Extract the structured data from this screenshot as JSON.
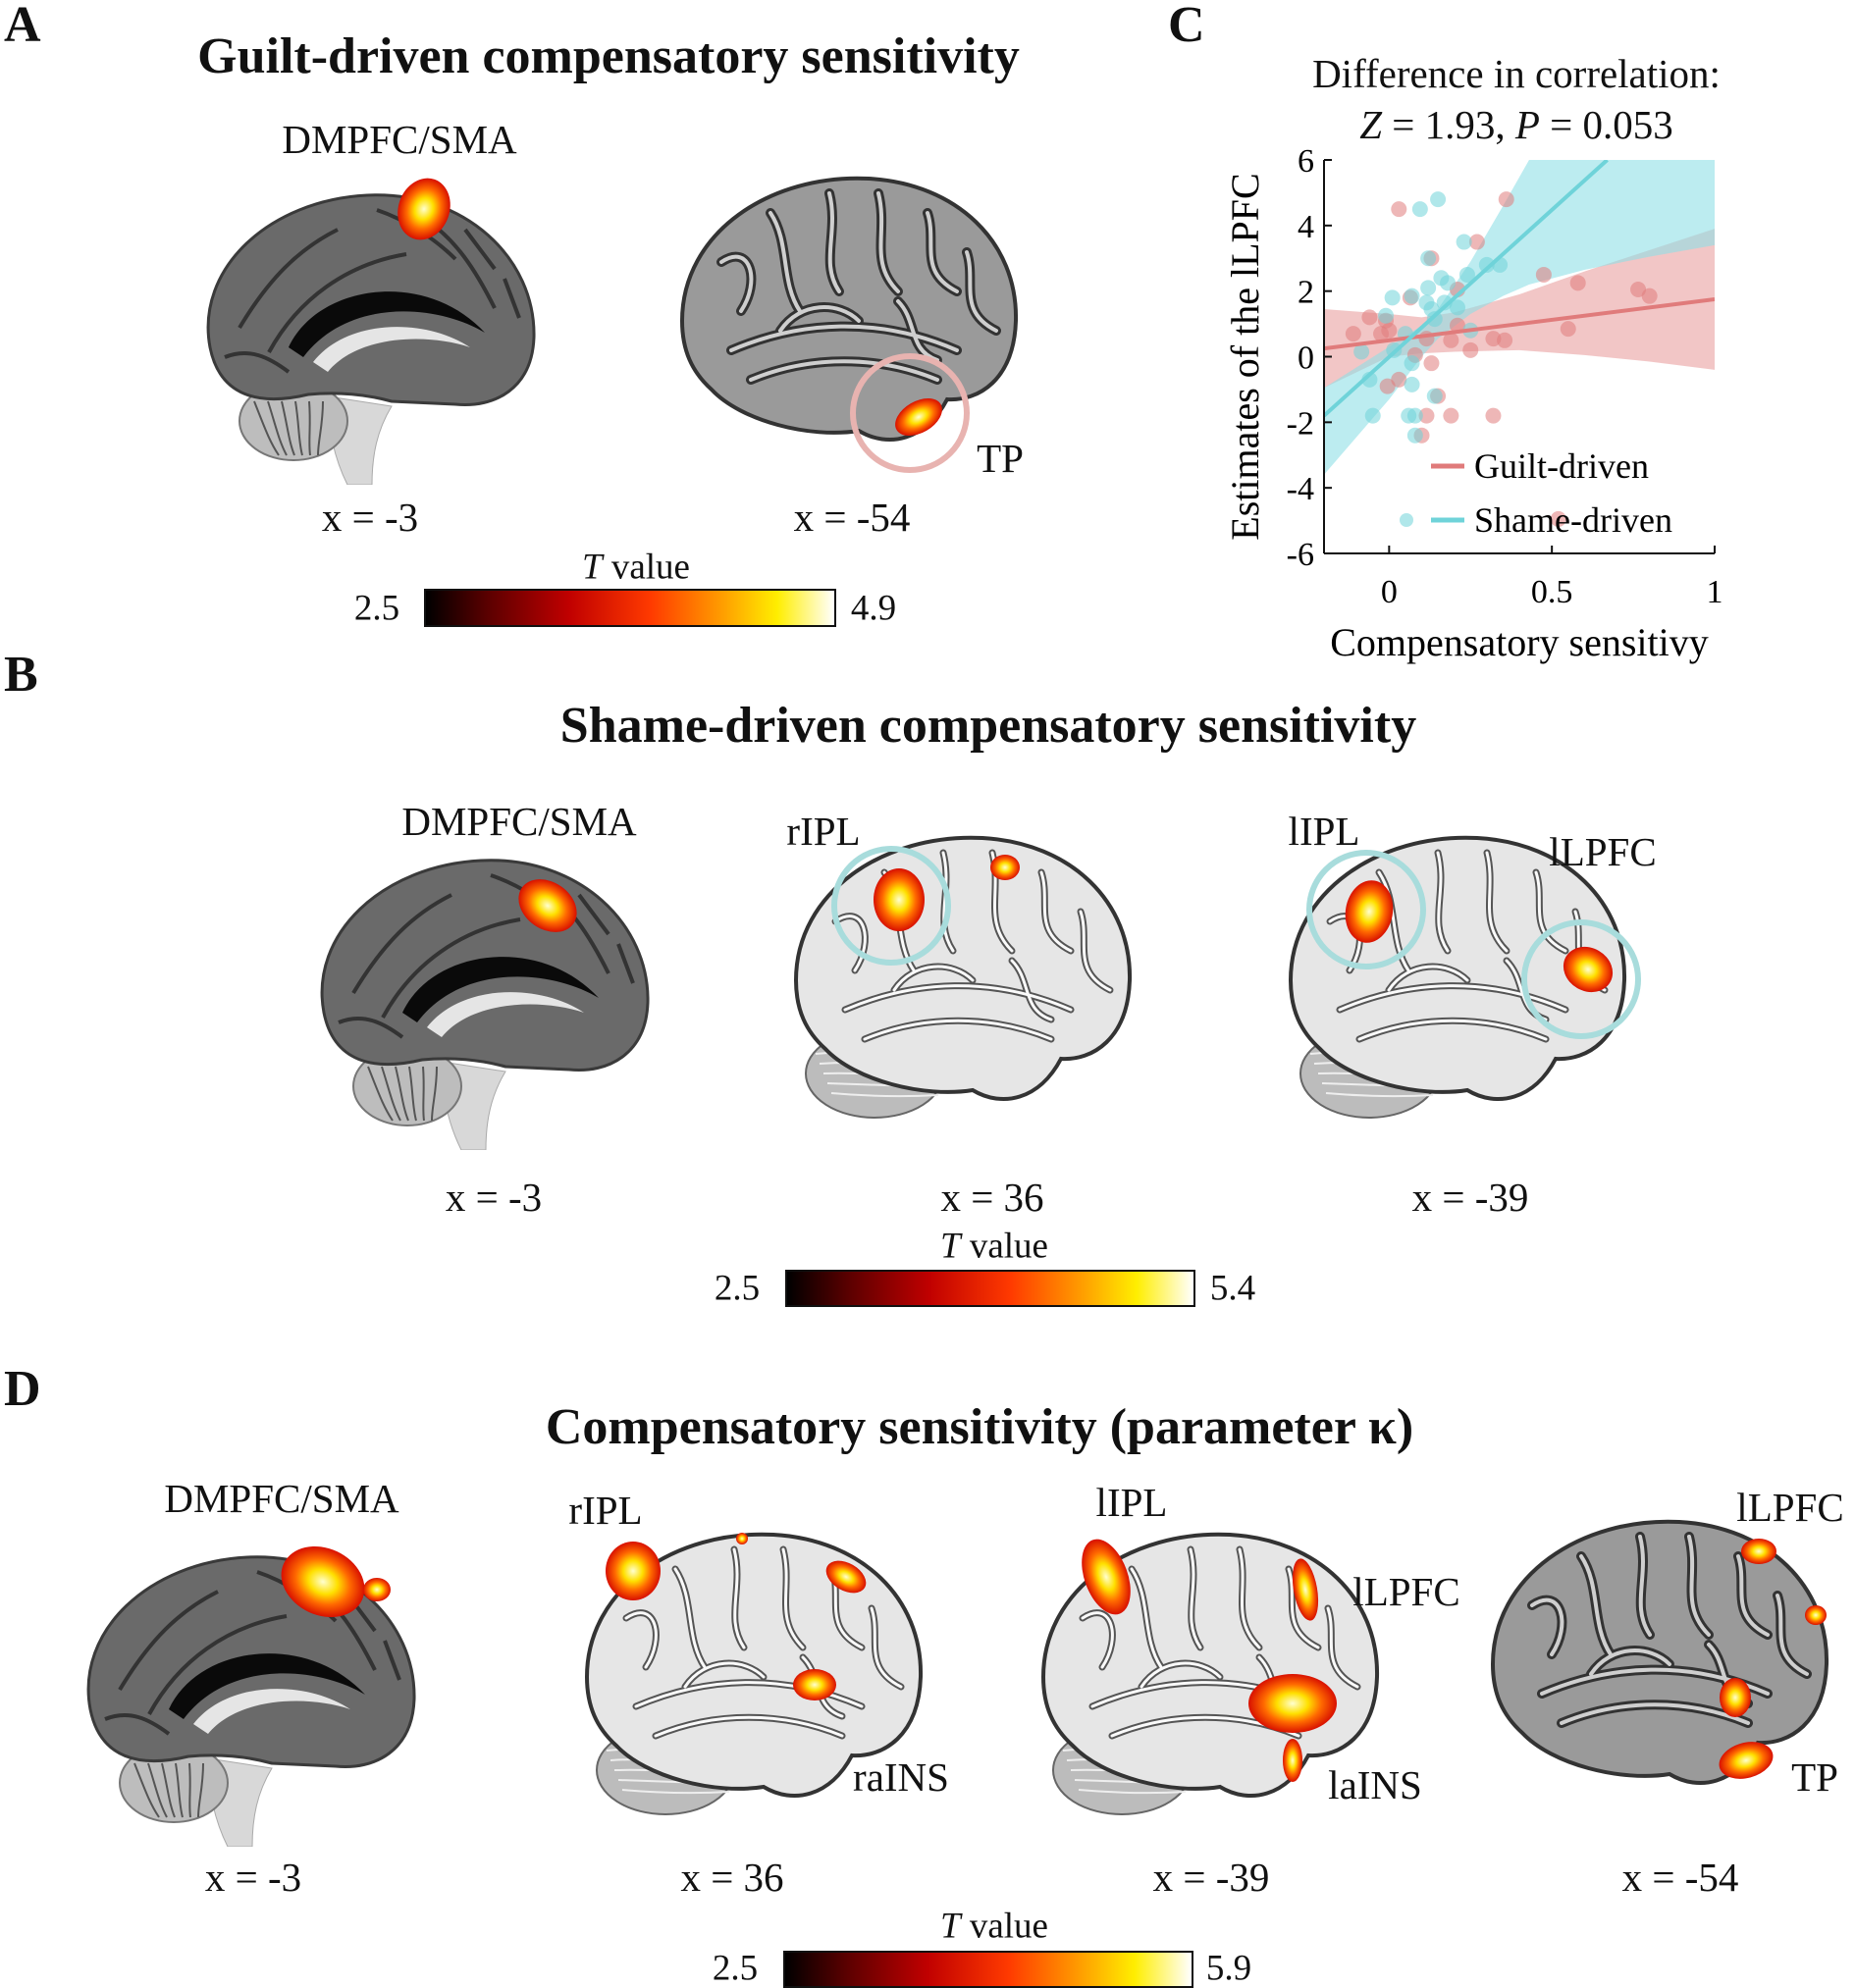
{
  "panelA": {
    "letter": "A",
    "title": "Guilt-driven compensatory sensitivity",
    "labels": {
      "dmpfc": "DMPFC/SMA",
      "tp": "TP"
    },
    "slices": [
      "x = -3",
      "x = -54"
    ],
    "colorbar": {
      "title_italic": "T",
      "title_rest": " value",
      "min": "2.5",
      "max": "4.9"
    }
  },
  "panelB": {
    "letter": "B",
    "title": "Shame-driven compensatory sensitivity",
    "labels": {
      "dmpfc": "DMPFC/SMA",
      "ripl": "rIPL",
      "lipl": "lIPL",
      "llpfc": "lLPFC"
    },
    "slices": [
      "x = -3",
      "x = 36",
      "x = -39"
    ],
    "colorbar": {
      "title_italic": "T",
      "title_rest": " value",
      "min": "2.5",
      "max": "5.4"
    }
  },
  "panelC": {
    "letter": "C"
  },
  "panelD": {
    "letter": "D",
    "title": "Compensatory sensitivity (parameter κ)",
    "labels": {
      "dmpfc": "DMPFC/SMA",
      "ripl": "rIPL",
      "lipl": "lIPL",
      "llpfc1": "lLPFC",
      "llpfc2": "lLPFC",
      "rains": "raINS",
      "lains": "laINS",
      "tp": "TP"
    },
    "slices": [
      "x = -3",
      "x = 36",
      "x = -39",
      "x = -54"
    ],
    "colorbar": {
      "title_italic": "T",
      "title_rest": " value",
      "min": "2.5",
      "max": "5.9"
    }
  },
  "colors": {
    "guilt": "#e07b7b",
    "shame": "#6fd3d9",
    "ring_guilt": "#e8b3b0",
    "ring_shame": "#a8dcdc"
  },
  "chart_data": {
    "type": "scatter",
    "title_line1": "Difference in correlation:",
    "title_line2": {
      "z_sym": "Z",
      "z_val": " = 1.93, ",
      "p_sym": "P",
      "p_val": " = 0.053"
    },
    "xlabel": "Compensatory sensitivy",
    "ylabel": "Estimates of the lLPFC",
    "xlim": [
      -0.2,
      1
    ],
    "ylim": [
      -6,
      6
    ],
    "xticks": [
      0,
      0.5,
      1
    ],
    "xtick_labels": [
      "0",
      "0.5",
      "1"
    ],
    "yticks": [
      -6,
      -4,
      -2,
      0,
      2,
      4,
      6
    ],
    "ytick_labels": [
      "-6",
      "-4",
      "-2",
      "0",
      "2",
      "4",
      "6"
    ],
    "legend": {
      "position": "bottom-right",
      "entries": [
        "Guilt-driven",
        "Shame-driven"
      ]
    },
    "grid": false,
    "series": [
      {
        "name": "Guilt-driven",
        "color": "#e07b7b",
        "points": [
          [
            0.03,
            4.5
          ],
          [
            0.36,
            4.8
          ],
          [
            0.27,
            3.5
          ],
          [
            0.13,
            3.0
          ],
          [
            0.065,
            1.8
          ],
          [
            0.21,
            2.05
          ],
          [
            -0.06,
            1.2
          ],
          [
            -0.11,
            0.7
          ],
          [
            -0.01,
            1.1
          ],
          [
            -0.025,
            0.7
          ],
          [
            0,
            0.8
          ],
          [
            0.08,
            0.05
          ],
          [
            0.13,
            -0.2
          ],
          [
            0.03,
            -0.7
          ],
          [
            -0.005,
            -0.9
          ],
          [
            0.15,
            -1.2
          ],
          [
            0.115,
            -1.8
          ],
          [
            0.19,
            -1.8
          ],
          [
            0.32,
            -1.8
          ],
          [
            0.1,
            -2.4
          ],
          [
            0.21,
            0.95
          ],
          [
            0.25,
            0.2
          ],
          [
            0.32,
            0.55
          ],
          [
            0.355,
            0.5
          ],
          [
            0.19,
            0.5
          ],
          [
            0.115,
            0.55
          ],
          [
            0.475,
            2.5
          ],
          [
            0.58,
            2.25
          ],
          [
            0.765,
            2.05
          ],
          [
            0.8,
            1.85
          ],
          [
            0.55,
            0.85
          ],
          [
            0.52,
            -4.95
          ]
        ],
        "fit": [
          [
            -0.2,
            0.25
          ],
          [
            1,
            1.75
          ]
        ],
        "ci": [
          [
            -0.2,
            -0.95,
            1.45
          ],
          [
            0,
            0.0,
            1.3
          ],
          [
            0.1,
            0.1,
            1.2
          ],
          [
            0.2,
            0.15,
            1.35
          ],
          [
            0.4,
            0.2,
            1.9
          ],
          [
            0.6,
            0.05,
            2.6
          ],
          [
            0.8,
            -0.15,
            3.25
          ],
          [
            1,
            -0.4,
            3.9
          ]
        ]
      },
      {
        "name": "Shame-driven",
        "color": "#6fd3d9",
        "points": [
          [
            0.15,
            4.8
          ],
          [
            0.095,
            4.5
          ],
          [
            0.23,
            3.5
          ],
          [
            0.12,
            3.0
          ],
          [
            0.3,
            2.8
          ],
          [
            0.34,
            2.8
          ],
          [
            0.24,
            2.5
          ],
          [
            0.16,
            2.4
          ],
          [
            0.18,
            2.25
          ],
          [
            0.12,
            2.1
          ],
          [
            0.01,
            1.8
          ],
          [
            0.07,
            1.85
          ],
          [
            0.115,
            1.65
          ],
          [
            0.17,
            1.65
          ],
          [
            0.21,
            1.5
          ],
          [
            0.13,
            1.45
          ],
          [
            0.14,
            1.15
          ],
          [
            -0.01,
            1.25
          ],
          [
            -0.085,
            0.15
          ],
          [
            0.015,
            0.2
          ],
          [
            0.05,
            0.7
          ],
          [
            0.25,
            0.8
          ],
          [
            -0.06,
            -0.7
          ],
          [
            0.07,
            -0.85
          ],
          [
            0.07,
            -0.2
          ],
          [
            -0.05,
            -1.8
          ],
          [
            0.06,
            -1.8
          ],
          [
            0.08,
            -1.8
          ],
          [
            0.14,
            -1.2
          ],
          [
            0.08,
            -2.4
          ]
        ],
        "fit": [
          [
            -0.2,
            -1.8
          ],
          [
            0.67,
            6
          ]
        ],
        "ci": [
          [
            -0.2,
            -3.6,
            -0.95
          ],
          [
            0,
            -1.3,
            0.3
          ],
          [
            0.1,
            0.0,
            0.95
          ],
          [
            0.15,
            0.55,
            1.45
          ],
          [
            0.25,
            1.3,
            2.9
          ],
          [
            0.35,
            1.85,
            4.6
          ],
          [
            0.43,
            2.2,
            6
          ],
          [
            0.6,
            2.65,
            6
          ],
          [
            0.8,
            3.05,
            6
          ],
          [
            1,
            3.4,
            6
          ]
        ]
      }
    ]
  }
}
